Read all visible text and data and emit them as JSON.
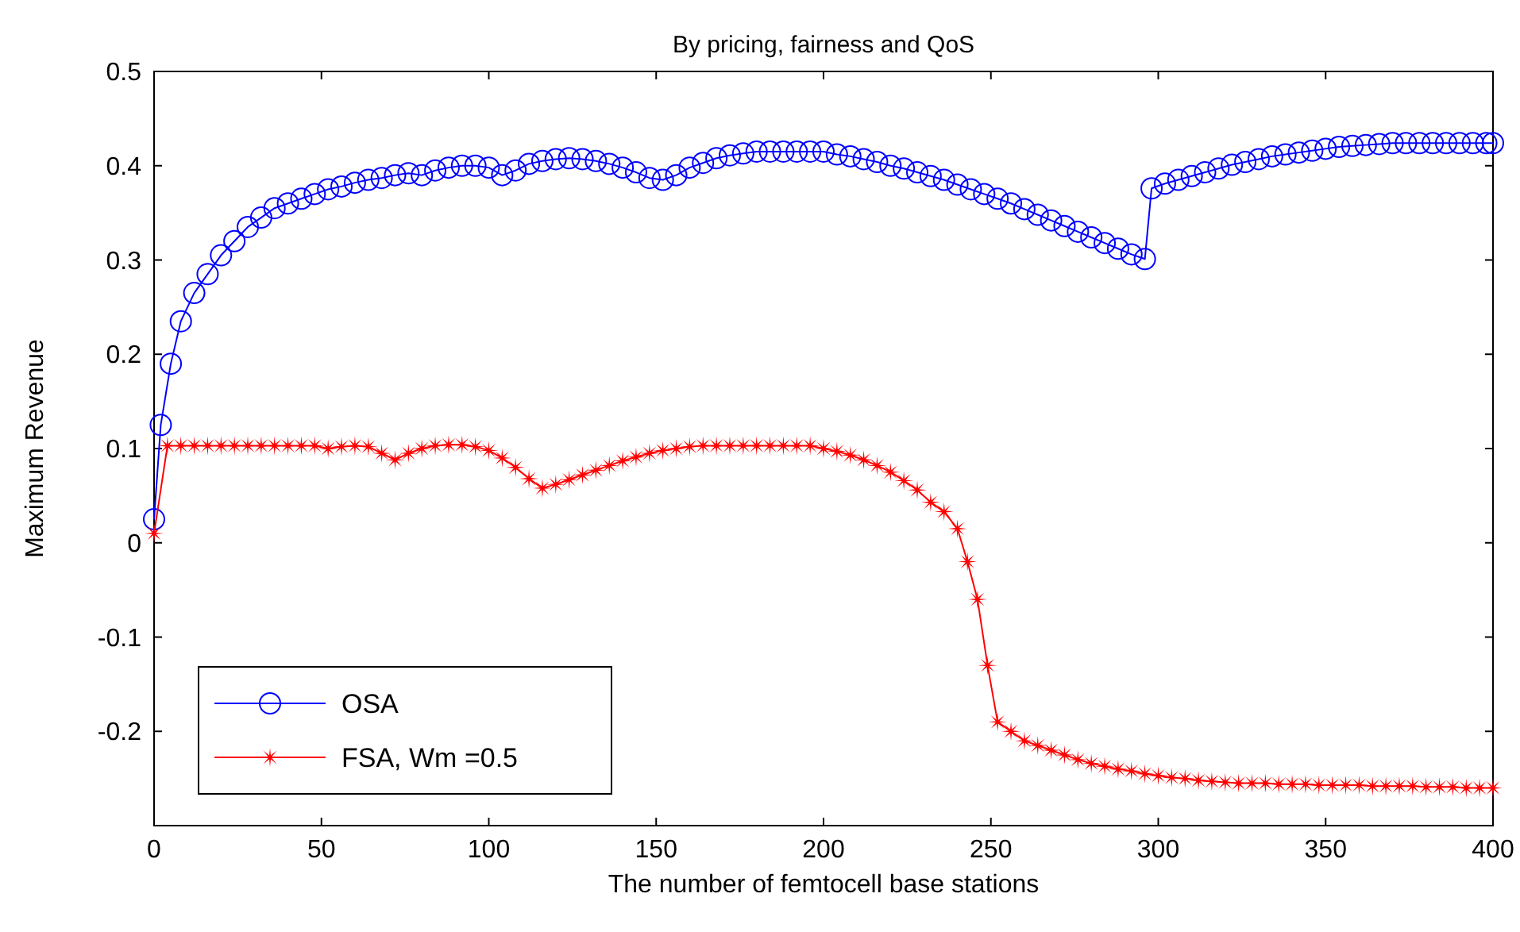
{
  "chart_data": {
    "type": "line",
    "title": "By pricing, fairness and QoS",
    "xlabel": "The number of femtocell base stations",
    "ylabel": "Maximum Revenue",
    "xlim": [
      0,
      400
    ],
    "ylim": [
      -0.3,
      0.5
    ],
    "xticks": [
      0,
      50,
      100,
      150,
      200,
      250,
      300,
      350,
      400
    ],
    "yticks": [
      -0.2,
      -0.1,
      0,
      0.1,
      0.2,
      0.3,
      0.4,
      0.5
    ],
    "grid": false,
    "legend": "bottom left",
    "series": [
      {
        "name": "OSA",
        "color": "#0000ff",
        "marker": "circle",
        "x": [
          0,
          2,
          5,
          8,
          12,
          16,
          20,
          24,
          28,
          32,
          36,
          40,
          44,
          48,
          52,
          56,
          60,
          64,
          68,
          72,
          76,
          80,
          84,
          88,
          92,
          96,
          100,
          104,
          108,
          112,
          116,
          120,
          124,
          128,
          132,
          136,
          140,
          144,
          148,
          152,
          156,
          160,
          164,
          168,
          172,
          176,
          180,
          184,
          188,
          192,
          196,
          200,
          204,
          208,
          212,
          216,
          220,
          224,
          228,
          232,
          236,
          240,
          244,
          248,
          252,
          256,
          260,
          264,
          268,
          272,
          276,
          280,
          284,
          288,
          292,
          296,
          298,
          302,
          306,
          310,
          314,
          318,
          322,
          326,
          330,
          334,
          338,
          342,
          346,
          350,
          354,
          358,
          362,
          366,
          370,
          374,
          378,
          382,
          386,
          390,
          394,
          398,
          400
        ],
        "values": [
          0.025,
          0.125,
          0.19,
          0.235,
          0.265,
          0.285,
          0.305,
          0.32,
          0.335,
          0.345,
          0.355,
          0.36,
          0.365,
          0.37,
          0.375,
          0.378,
          0.382,
          0.385,
          0.387,
          0.39,
          0.392,
          0.39,
          0.395,
          0.398,
          0.4,
          0.4,
          0.398,
          0.39,
          0.395,
          0.402,
          0.405,
          0.407,
          0.408,
          0.407,
          0.405,
          0.402,
          0.398,
          0.393,
          0.387,
          0.385,
          0.39,
          0.398,
          0.403,
          0.408,
          0.411,
          0.413,
          0.415,
          0.415,
          0.415,
          0.415,
          0.415,
          0.415,
          0.412,
          0.41,
          0.407,
          0.404,
          0.4,
          0.397,
          0.393,
          0.389,
          0.385,
          0.38,
          0.375,
          0.37,
          0.365,
          0.36,
          0.354,
          0.348,
          0.342,
          0.336,
          0.33,
          0.324,
          0.318,
          0.312,
          0.306,
          0.301,
          0.376,
          0.381,
          0.385,
          0.389,
          0.393,
          0.397,
          0.401,
          0.404,
          0.407,
          0.41,
          0.412,
          0.414,
          0.416,
          0.418,
          0.42,
          0.421,
          0.422,
          0.423,
          0.424,
          0.424,
          0.424,
          0.424,
          0.424,
          0.424,
          0.424,
          0.424,
          0.424
        ]
      },
      {
        "name": "FSA, Wm =0.5",
        "color": "#ff0000",
        "marker": "star",
        "x": [
          0,
          4,
          8,
          12,
          16,
          20,
          24,
          28,
          32,
          36,
          40,
          44,
          48,
          52,
          56,
          60,
          64,
          68,
          72,
          76,
          80,
          84,
          88,
          92,
          96,
          100,
          104,
          108,
          112,
          116,
          120,
          124,
          128,
          132,
          136,
          140,
          144,
          148,
          152,
          156,
          160,
          164,
          168,
          172,
          176,
          180,
          184,
          188,
          192,
          196,
          200,
          204,
          208,
          212,
          216,
          220,
          224,
          228,
          232,
          236,
          240,
          243,
          246,
          249,
          252,
          256,
          260,
          264,
          268,
          272,
          276,
          280,
          284,
          288,
          292,
          296,
          300,
          304,
          308,
          312,
          316,
          320,
          324,
          328,
          332,
          336,
          340,
          344,
          348,
          352,
          356,
          360,
          364,
          368,
          372,
          376,
          380,
          384,
          388,
          392,
          396,
          400
        ],
        "values": [
          0.01,
          0.103,
          0.103,
          0.103,
          0.103,
          0.103,
          0.103,
          0.103,
          0.103,
          0.103,
          0.103,
          0.103,
          0.103,
          0.1,
          0.102,
          0.103,
          0.102,
          0.095,
          0.088,
          0.095,
          0.1,
          0.103,
          0.104,
          0.104,
          0.102,
          0.098,
          0.09,
          0.08,
          0.068,
          0.058,
          0.062,
          0.067,
          0.072,
          0.077,
          0.082,
          0.087,
          0.091,
          0.095,
          0.098,
          0.1,
          0.102,
          0.103,
          0.103,
          0.103,
          0.103,
          0.103,
          0.103,
          0.103,
          0.103,
          0.103,
          0.1,
          0.097,
          0.093,
          0.088,
          0.082,
          0.075,
          0.066,
          0.056,
          0.043,
          0.033,
          0.015,
          -0.02,
          -0.06,
          -0.13,
          -0.19,
          -0.2,
          -0.21,
          -0.215,
          -0.22,
          -0.225,
          -0.23,
          -0.234,
          -0.237,
          -0.24,
          -0.242,
          -0.245,
          -0.247,
          -0.249,
          -0.25,
          -0.252,
          -0.253,
          -0.254,
          -0.255,
          -0.255,
          -0.255,
          -0.256,
          -0.256,
          -0.256,
          -0.257,
          -0.257,
          -0.257,
          -0.257,
          -0.258,
          -0.258,
          -0.258,
          -0.258,
          -0.259,
          -0.259,
          -0.259,
          -0.26,
          -0.26,
          -0.26
        ]
      }
    ]
  }
}
